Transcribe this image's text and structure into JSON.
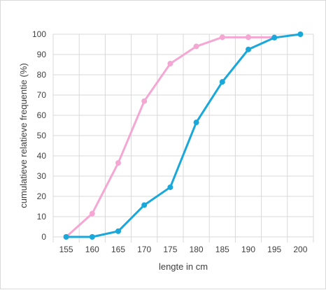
{
  "chart_data": {
    "type": "line",
    "title": "",
    "xlabel": "lengte in cm",
    "ylabel": "cumulatieve relatieve frequentie (%)",
    "x": [
      155,
      160,
      165,
      170,
      175,
      180,
      185,
      190,
      195,
      200
    ],
    "xlim": [
      155,
      200
    ],
    "ylim": [
      0,
      100
    ],
    "y_ticks": [
      0,
      10,
      20,
      30,
      40,
      50,
      60,
      70,
      80,
      90,
      100
    ],
    "grid": "horizontal, vertical category dividers",
    "legend": "none",
    "series": [
      {
        "color": "#f4a7d3",
        "values": [
          0,
          11.5,
          36.5,
          67,
          85.5,
          94,
          98.5,
          98.5,
          98.5,
          null
        ]
      },
      {
        "color": "#1aa7d9",
        "values": [
          0,
          0,
          2.8,
          15.7,
          24.5,
          56.5,
          76.5,
          92.5,
          98.3,
          100
        ]
      }
    ]
  }
}
